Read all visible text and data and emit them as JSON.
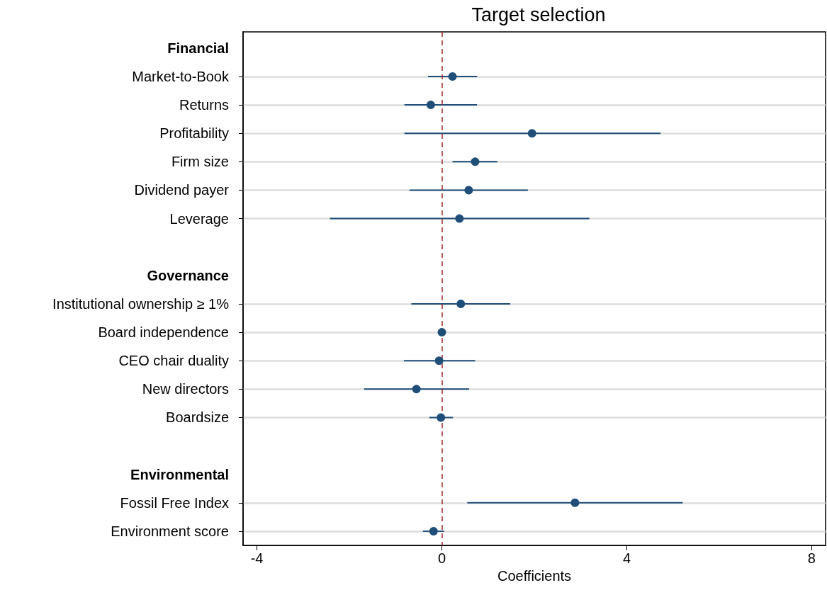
{
  "chart_data": {
    "type": "scatter",
    "title": "Target selection",
    "xlabel": "Coefficients",
    "categories": [
      "Financial",
      "Market-to-Book",
      "Returns",
      "Profitability",
      "Firm size",
      "Dividend payer",
      "Leverage",
      null,
      "Governance",
      "Institutional ownership ≥ 1%",
      "Board independence",
      "CEO chair duality",
      "New directors",
      "Boardsize",
      null,
      "Environmental",
      "Fossil Free Index",
      "Environment score"
    ],
    "series": [
      {
        "color": "#1f4e79",
        "values": [
          null,
          0.23,
          -0.24,
          1.95,
          0.72,
          0.58,
          0.38,
          null,
          null,
          0.41,
          0,
          -0.06,
          -0.55,
          -0.02,
          null,
          null,
          2.88,
          -0.18
        ],
        "errors": [
          null,
          [
            -0.3,
            0.76
          ],
          [
            -0.81,
            0.76
          ],
          [
            -0.81,
            4.73
          ],
          [
            0.23,
            1.2
          ],
          [
            -0.7,
            1.86
          ],
          [
            -2.42,
            3.19
          ],
          null,
          null,
          [
            -0.66,
            1.48
          ],
          null,
          [
            -0.82,
            0.72
          ],
          [
            -1.68,
            0.59
          ],
          [
            -0.27,
            0.24
          ],
          null,
          null,
          [
            0.55,
            5.21
          ],
          [
            -0.41,
            0.05
          ]
        ]
      }
    ],
    "orientation": "horizontal",
    "xlim": [
      -4.3,
      8.3
    ],
    "xticks": [
      -4,
      0,
      4,
      8
    ],
    "grid": "y",
    "marker": "circle",
    "ref_lines": [
      {
        "axis": "x",
        "value": 0,
        "color": "#9e2a2b",
        "line_style": "dashed"
      }
    ]
  }
}
